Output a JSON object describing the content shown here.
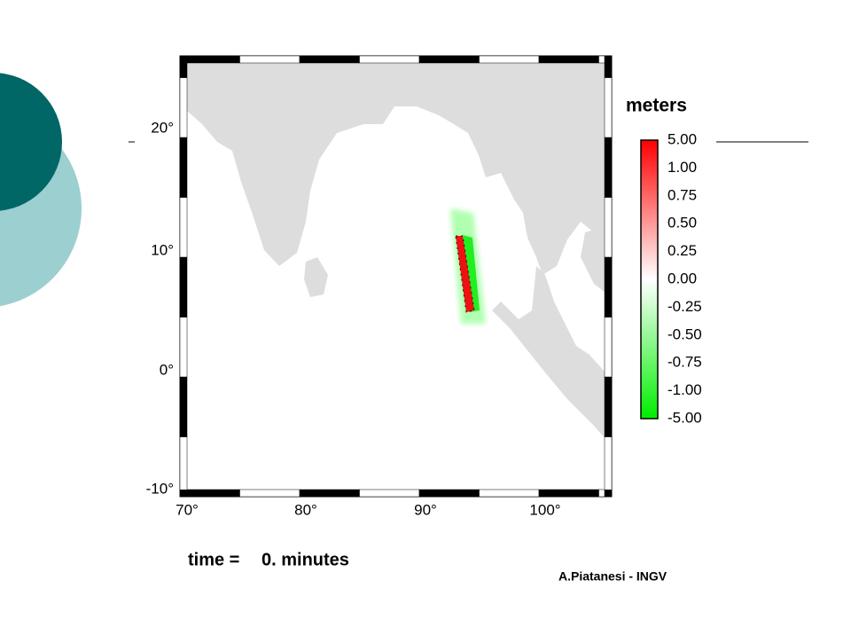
{
  "map": {
    "lat_labels": [
      "20°",
      "10°",
      "0°",
      "-10°"
    ],
    "lon_labels": [
      "70°",
      "80°",
      "90°",
      "100°"
    ]
  },
  "colorbar": {
    "title": "meters",
    "labels": [
      "5.00",
      "1.00",
      "0.75",
      "0.50",
      "0.25",
      "0.00",
      "-0.25",
      "-0.50",
      "-0.75",
      "-1.00",
      "-5.00"
    ]
  },
  "caption": {
    "label": "time =",
    "value": "0. minutes"
  },
  "credit": "A.Piatanesi - INGV"
}
